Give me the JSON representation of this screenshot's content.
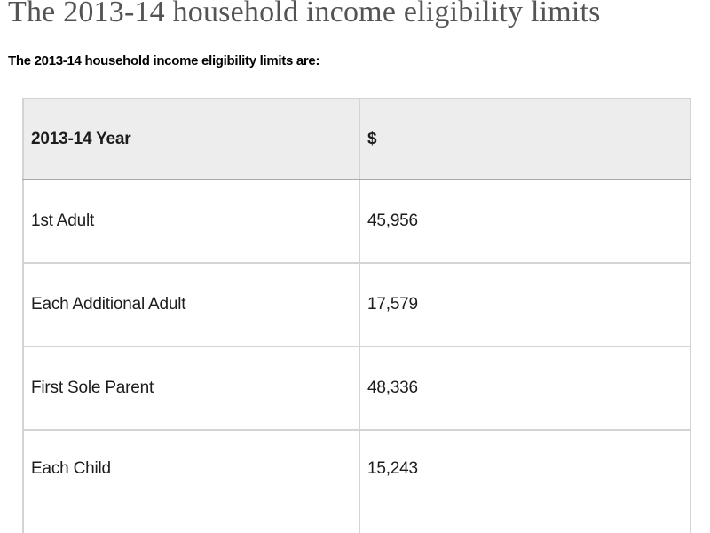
{
  "page": {
    "title": "The 2013-14 household income eligibility limits",
    "intro": "The 2013-14 household income eligibility limits are:"
  },
  "table": {
    "columns": [
      "2013-14 Year",
      "$"
    ],
    "rows": [
      {
        "label": "1st Adult",
        "value": "45,956"
      },
      {
        "label": "Each Additional Adult",
        "value": "17,579"
      },
      {
        "label": "First Sole Parent",
        "value": "48,336"
      },
      {
        "label": "Each Child",
        "value": "15,243"
      }
    ]
  },
  "colors": {
    "heading": "#545454",
    "text": "#1c1c1c",
    "header_bg": "#ededed",
    "outer_border": "#7f7f7f",
    "inner_border": "#d4d4d4",
    "header_bottom_border": "#a9a9a9",
    "page_bg": "#ffffff"
  }
}
